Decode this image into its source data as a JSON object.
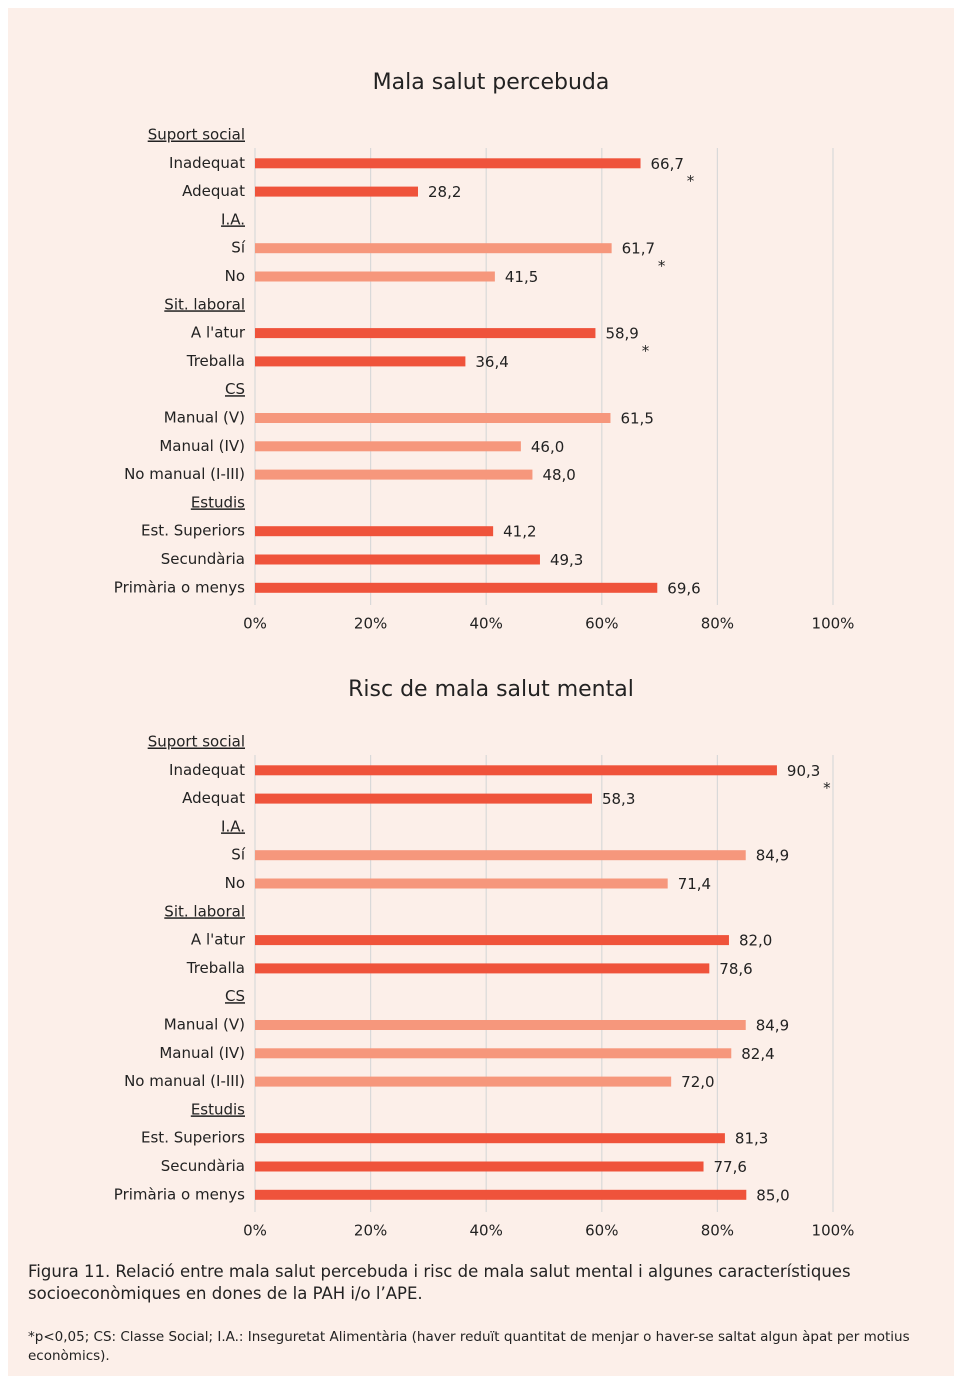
{
  "chart_data": [
    {
      "type": "bar",
      "title": "Mala salut percebuda",
      "xlim": [
        0,
        100
      ],
      "xticks": [
        {
          "value": 0,
          "label": "0%"
        },
        {
          "value": 20,
          "label": "20%"
        },
        {
          "value": 40,
          "label": "40%"
        },
        {
          "value": 60,
          "label": "60%"
        },
        {
          "value": 80,
          "label": "80%"
        },
        {
          "value": 100,
          "label": "100%"
        }
      ],
      "grid": true,
      "groups": [
        {
          "name": "Suport social",
          "color": "#ef533b",
          "categories": [
            "Inadequat",
            "Adequat"
          ],
          "values": [
            66.7,
            28.2
          ],
          "value_labels": [
            "66,7",
            "28,2"
          ],
          "note": "*"
        },
        {
          "name": "I.A.",
          "color": "#f6977c",
          "categories": [
            "Sí",
            "No"
          ],
          "values": [
            61.7,
            41.5
          ],
          "value_labels": [
            "61,7",
            "41,5"
          ],
          "note": "*"
        },
        {
          "name": "Sit. laboral",
          "color": "#ef533b",
          "categories": [
            "A l'atur",
            "Treballa"
          ],
          "values": [
            58.9,
            36.4
          ],
          "value_labels": [
            "58,9",
            "36,4"
          ],
          "note": "*"
        },
        {
          "name": "CS",
          "color": "#f6977c",
          "categories": [
            "Manual (V)",
            "Manual (IV)",
            "No manual (I-III)"
          ],
          "values": [
            61.5,
            46.0,
            48.0
          ],
          "value_labels": [
            "61,5",
            "46,0",
            "48,0"
          ]
        },
        {
          "name": "Estudis",
          "color": "#ef533b",
          "categories": [
            "Est. Superiors",
            "Secundària",
            "Primària o menys"
          ],
          "values": [
            41.2,
            49.3,
            69.6
          ],
          "value_labels": [
            "41,2",
            "49,3",
            "69,6"
          ]
        }
      ]
    },
    {
      "type": "bar",
      "title": "Risc de mala salut mental",
      "xlim": [
        0,
        100
      ],
      "xticks": [
        {
          "value": 0,
          "label": "0%"
        },
        {
          "value": 20,
          "label": "20%"
        },
        {
          "value": 40,
          "label": "40%"
        },
        {
          "value": 60,
          "label": "60%"
        },
        {
          "value": 80,
          "label": "80%"
        },
        {
          "value": 100,
          "label": "100%"
        }
      ],
      "grid": true,
      "groups": [
        {
          "name": "Suport social",
          "color": "#ef533b",
          "categories": [
            "Inadequat",
            "Adequat"
          ],
          "values": [
            90.3,
            58.3
          ],
          "value_labels": [
            "90,3",
            "58,3"
          ],
          "note": "*"
        },
        {
          "name": "I.A.",
          "color": "#f6977c",
          "categories": [
            "Sí",
            "No"
          ],
          "values": [
            84.9,
            71.4
          ],
          "value_labels": [
            "84,9",
            "71,4"
          ]
        },
        {
          "name": "Sit. laboral",
          "color": "#ef533b",
          "categories": [
            "A l'atur",
            "Treballa"
          ],
          "values": [
            82.0,
            78.6
          ],
          "value_labels": [
            "82,0",
            "78,6"
          ]
        },
        {
          "name": "CS",
          "color": "#f6977c",
          "categories": [
            "Manual (V)",
            "Manual (IV)",
            "No manual (I-III)"
          ],
          "values": [
            84.9,
            82.4,
            72.0
          ],
          "value_labels": [
            "84,9",
            "82,4",
            "72,0"
          ]
        },
        {
          "name": "Estudis",
          "color": "#ef533b",
          "categories": [
            "Est. Superiors",
            "Secundària",
            "Primària o menys"
          ],
          "values": [
            81.3,
            77.6,
            85.0
          ],
          "value_labels": [
            "81,3",
            "77,6",
            "85,0"
          ]
        }
      ]
    }
  ],
  "caption": "Figura 11. Relació entre mala salut percebuda i risc de mala salut mental i algunes característiques socioeconòmiques en dones de la PAH i/o l’APE.",
  "footnote": "*p<0,05; CS: Classe Social; I.A.: Inseguretat Alimentària (haver reduït quantitat de menjar o haver-se saltat algun àpat per motius econòmics)."
}
